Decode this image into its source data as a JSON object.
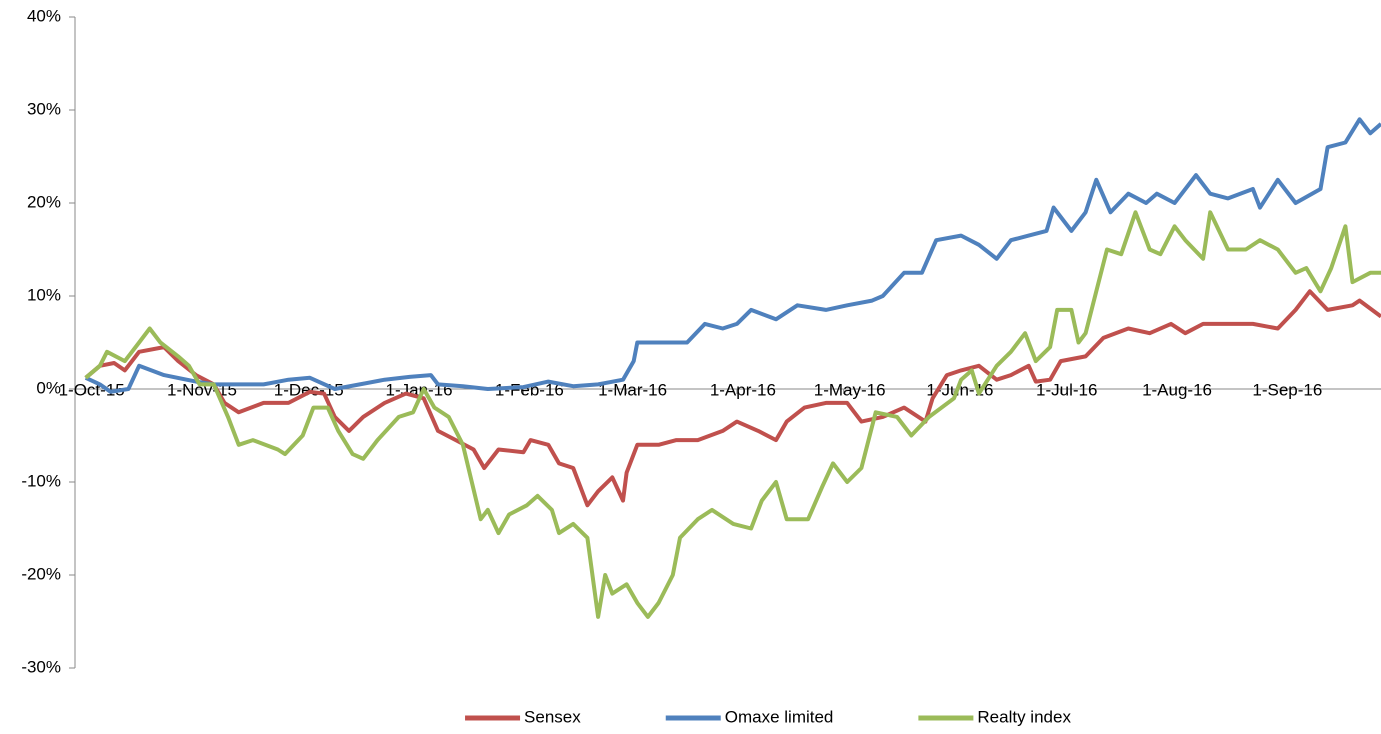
{
  "chart_data": {
    "type": "line",
    "ylim": [
      -30,
      40
    ],
    "yticks": [
      {
        "value": -30,
        "label": "-30%"
      },
      {
        "value": -20,
        "label": "-20%"
      },
      {
        "value": -10,
        "label": "-10%"
      },
      {
        "value": 0,
        "label": "0%"
      },
      {
        "value": 10,
        "label": "10%"
      },
      {
        "value": 20,
        "label": "20%"
      },
      {
        "value": 30,
        "label": "30%"
      },
      {
        "value": 40,
        "label": "40%"
      }
    ],
    "xlim": [
      "2015-09-28",
      "2016-09-29"
    ],
    "xticks": [
      {
        "value": "2015-10-01",
        "label": "1-Oct-15"
      },
      {
        "value": "2015-11-01",
        "label": "1-Nov-15"
      },
      {
        "value": "2015-12-01",
        "label": "1-Dec-15"
      },
      {
        "value": "2016-01-01",
        "label": "1-Jan-16"
      },
      {
        "value": "2016-02-01",
        "label": "1-Feb-16"
      },
      {
        "value": "2016-03-01",
        "label": "1-Mar-16"
      },
      {
        "value": "2016-04-01",
        "label": "1-Apr-16"
      },
      {
        "value": "2016-05-01",
        "label": "1-May-16"
      },
      {
        "value": "2016-06-01",
        "label": "1-Jun-16"
      },
      {
        "value": "2016-07-01",
        "label": "1-Jul-16"
      },
      {
        "value": "2016-08-01",
        "label": "1-Aug-16"
      },
      {
        "value": "2016-09-01",
        "label": "1-Sep-16"
      }
    ],
    "legend": "bottom",
    "series": [
      {
        "name": "Sensex",
        "color": "#c0504d",
        "x": [
          "2015-10-01",
          "2015-10-05",
          "2015-10-09",
          "2015-10-12",
          "2015-10-16",
          "2015-10-23",
          "2015-10-27",
          "2015-11-01",
          "2015-11-06",
          "2015-11-09",
          "2015-11-13",
          "2015-11-20",
          "2015-11-27",
          "2015-12-03",
          "2015-12-07",
          "2015-12-10",
          "2015-12-14",
          "2015-12-18",
          "2015-12-24",
          "2015-12-30",
          "2016-01-04",
          "2016-01-08",
          "2016-01-13",
          "2016-01-18",
          "2016-01-21",
          "2016-01-25",
          "2016-02-01",
          "2016-02-03",
          "2016-02-08",
          "2016-02-11",
          "2016-02-15",
          "2016-02-17",
          "2016-02-19",
          "2016-02-22",
          "2016-02-26",
          "2016-02-29",
          "2016-03-01",
          "2016-03-04",
          "2016-03-10",
          "2016-03-15",
          "2016-03-21",
          "2016-03-28",
          "2016-04-01",
          "2016-04-07",
          "2016-04-12",
          "2016-04-15",
          "2016-04-20",
          "2016-04-26",
          "2016-05-02",
          "2016-05-06",
          "2016-05-12",
          "2016-05-18",
          "2016-05-24",
          "2016-05-26",
          "2016-05-30",
          "2016-06-03",
          "2016-06-08",
          "2016-06-13",
          "2016-06-17",
          "2016-06-22",
          "2016-06-24",
          "2016-06-28",
          "2016-07-01",
          "2016-07-08",
          "2016-07-13",
          "2016-07-20",
          "2016-07-26",
          "2016-08-01",
          "2016-08-05",
          "2016-08-10",
          "2016-08-17",
          "2016-08-24",
          "2016-08-31",
          "2016-09-05",
          "2016-09-09",
          "2016-09-14",
          "2016-09-21",
          "2016-09-23",
          "2016-09-29"
        ],
        "values": [
          1.2,
          2.5,
          2.8,
          2,
          4,
          4.5,
          3,
          1.5,
          0.5,
          -1.5,
          -2.5,
          -1.5,
          -1.5,
          -0.3,
          -0.5,
          -3,
          -4.5,
          -3,
          -1.5,
          -0.5,
          -1,
          -4.5,
          -5.5,
          -6.5,
          -8.5,
          -6.5,
          -6.8,
          -5.5,
          -6,
          -8,
          -8.5,
          -10.5,
          -12.5,
          -11,
          -9.5,
          -12,
          -9,
          -6,
          -6,
          -5.5,
          -5.5,
          -4.5,
          -3.5,
          -4.5,
          -5.5,
          -3.5,
          -2,
          -1.5,
          -1.5,
          -3.5,
          -3,
          -2,
          -3.5,
          -1,
          1.5,
          2,
          2.5,
          1,
          1.5,
          2.5,
          0.8,
          1,
          3,
          3.5,
          5.5,
          6.5,
          6,
          7,
          6,
          7,
          7,
          7,
          6.5,
          8.5,
          10.5,
          8.5,
          9,
          9.5,
          7.8
        ]
      },
      {
        "name": "Omaxe limited",
        "color": "#4f81bd",
        "x": [
          "2015-10-01",
          "2015-10-05",
          "2015-10-08",
          "2015-10-13",
          "2015-10-16",
          "2015-10-23",
          "2015-11-01",
          "2015-11-06",
          "2015-11-13",
          "2015-11-20",
          "2015-11-27",
          "2015-12-03",
          "2015-12-10",
          "2015-12-17",
          "2015-12-24",
          "2015-12-31",
          "2016-01-06",
          "2016-01-08",
          "2016-01-15",
          "2016-01-22",
          "2016-02-01",
          "2016-02-08",
          "2016-02-15",
          "2016-02-22",
          "2016-02-29",
          "2016-03-03",
          "2016-03-04",
          "2016-03-10",
          "2016-03-18",
          "2016-03-23",
          "2016-03-28",
          "2016-04-01",
          "2016-04-05",
          "2016-04-12",
          "2016-04-18",
          "2016-04-26",
          "2016-05-02",
          "2016-05-09",
          "2016-05-12",
          "2016-05-18",
          "2016-05-23",
          "2016-05-27",
          "2016-06-03",
          "2016-06-08",
          "2016-06-13",
          "2016-06-17",
          "2016-06-22",
          "2016-06-27",
          "2016-06-29",
          "2016-07-04",
          "2016-07-08",
          "2016-07-11",
          "2016-07-15",
          "2016-07-20",
          "2016-07-25",
          "2016-07-28",
          "2016-08-02",
          "2016-08-08",
          "2016-08-12",
          "2016-08-17",
          "2016-08-24",
          "2016-08-26",
          "2016-08-31",
          "2016-09-05",
          "2016-09-12",
          "2016-09-14",
          "2016-09-19",
          "2016-09-23",
          "2016-09-26",
          "2016-09-29"
        ],
        "values": [
          1.2,
          0.5,
          -0.3,
          0,
          2.5,
          1.5,
          0.8,
          0.5,
          0.5,
          0.5,
          1,
          1.2,
          0,
          0.5,
          1,
          1.3,
          1.5,
          0.5,
          0.3,
          0,
          0.2,
          0.8,
          0.3,
          0.5,
          1,
          3,
          5,
          5,
          5,
          7,
          6.5,
          7,
          8.5,
          7.5,
          9,
          8.5,
          9,
          9.5,
          10,
          12.5,
          12.5,
          16,
          16.5,
          15.5,
          14,
          16,
          16.5,
          17,
          19.5,
          17,
          19,
          22.5,
          19,
          21,
          20,
          21,
          20,
          23,
          21,
          20.5,
          21.5,
          19.5,
          22.5,
          20,
          21.5,
          26,
          26.5,
          29,
          27.5,
          28.5
        ]
      },
      {
        "name": "Realty index",
        "color": "#9bbb59",
        "x": [
          "2015-10-01",
          "2015-10-05",
          "2015-10-07",
          "2015-10-12",
          "2015-10-16",
          "2015-10-19",
          "2015-10-22",
          "2015-10-27",
          "2015-10-30",
          "2015-11-02",
          "2015-11-06",
          "2015-11-10",
          "2015-11-13",
          "2015-11-17",
          "2015-11-24",
          "2015-11-26",
          "2015-12-01",
          "2015-12-04",
          "2015-12-08",
          "2015-12-11",
          "2015-12-15",
          "2015-12-18",
          "2015-12-22",
          "2015-12-28",
          "2016-01-01",
          "2016-01-04",
          "2016-01-07",
          "2016-01-11",
          "2016-01-15",
          "2016-01-20",
          "2016-01-22",
          "2016-01-25",
          "2016-01-28",
          "2016-02-02",
          "2016-02-05",
          "2016-02-09",
          "2016-02-11",
          "2016-02-15",
          "2016-02-19",
          "2016-02-22",
          "2016-02-24",
          "2016-02-26",
          "2016-03-01",
          "2016-03-04",
          "2016-03-07",
          "2016-03-10",
          "2016-03-14",
          "2016-03-16",
          "2016-03-21",
          "2016-03-25",
          "2016-03-31",
          "2016-04-05",
          "2016-04-08",
          "2016-04-12",
          "2016-04-15",
          "2016-04-21",
          "2016-04-25",
          "2016-04-28",
          "2016-05-02",
          "2016-05-06",
          "2016-05-10",
          "2016-05-16",
          "2016-05-20",
          "2016-05-25",
          "2016-06-01",
          "2016-06-03",
          "2016-06-06",
          "2016-06-08",
          "2016-06-13",
          "2016-06-17",
          "2016-06-21",
          "2016-06-24",
          "2016-06-28",
          "2016-06-30",
          "2016-07-04",
          "2016-07-06",
          "2016-07-08",
          "2016-07-11",
          "2016-07-14",
          "2016-07-18",
          "2016-07-22",
          "2016-07-26",
          "2016-07-29",
          "2016-08-02",
          "2016-08-05",
          "2016-08-10",
          "2016-08-12",
          "2016-08-17",
          "2016-08-22",
          "2016-08-26",
          "2016-08-31",
          "2016-09-05",
          "2016-09-08",
          "2016-09-12",
          "2016-09-15",
          "2016-09-19",
          "2016-09-21",
          "2016-09-26",
          "2016-09-29"
        ],
        "values": [
          1.2,
          2.5,
          4,
          3,
          5,
          6.5,
          5,
          3.5,
          2.5,
          0.5,
          0.5,
          -3,
          -6,
          -5.5,
          -6.5,
          -7,
          -5,
          -2,
          -2,
          -4.5,
          -7,
          -7.5,
          -5.5,
          -3,
          -2.5,
          0,
          -2,
          -3,
          -6,
          -14,
          -13,
          -15.5,
          -13.5,
          -12.5,
          -11.5,
          -13,
          -15.5,
          -14.5,
          -16,
          -24.5,
          -20,
          -22,
          -21,
          -23,
          -24.5,
          -23,
          -20,
          -16,
          -14,
          -13,
          -14.5,
          -15,
          -12,
          -10,
          -14,
          -14,
          -10.5,
          -8,
          -10,
          -8.5,
          -2.5,
          -3,
          -5,
          -3,
          -1,
          1,
          2,
          -0.5,
          2.5,
          4,
          6,
          3,
          4.5,
          8.5,
          8.5,
          5,
          6,
          10.5,
          15,
          14.5,
          19,
          15,
          14.5,
          17.5,
          16,
          14,
          19,
          15,
          15,
          16,
          15,
          12.5,
          13,
          10.5,
          13,
          17.5,
          11.5,
          12.5,
          12.5
        ]
      }
    ]
  }
}
